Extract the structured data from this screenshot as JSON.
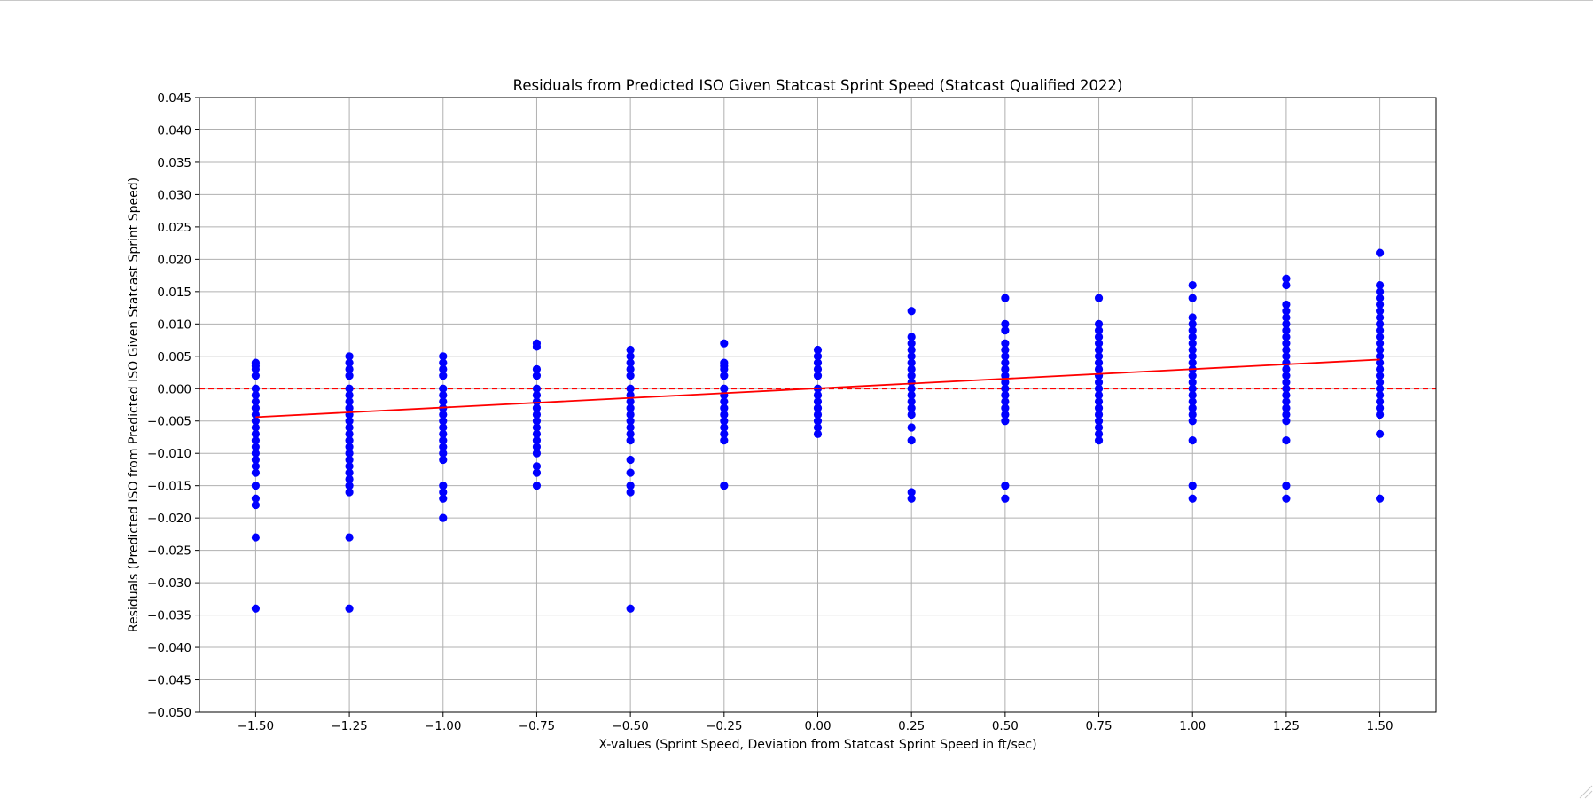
{
  "chart_data": {
    "type": "scatter",
    "title": "Residuals from Predicted ISO Given Statcast Sprint Speed (Statcast Qualified 2022)",
    "xlabel": "X-values (Sprint Speed, Deviation from Statcast Sprint Speed in ft/sec)",
    "ylabel": "Residuals (Predicted ISO from Predicted ISO Given Statcast Sprint Speed)",
    "xlim": [
      -1.65,
      1.65
    ],
    "ylim": [
      -0.05,
      0.045
    ],
    "xticks": [
      -1.5,
      -1.25,
      -1.0,
      -0.75,
      -0.5,
      -0.25,
      0.0,
      0.25,
      0.5,
      0.75,
      1.0,
      1.25,
      1.5
    ],
    "xtick_labels": [
      "−1.50",
      "−1.25",
      "−1.00",
      "−0.75",
      "−0.50",
      "−0.25",
      "0.00",
      "0.25",
      "0.50",
      "0.75",
      "1.00",
      "1.25",
      "1.50"
    ],
    "yticks": [
      0.045,
      0.04,
      0.035,
      0.03,
      0.025,
      0.02,
      0.015,
      0.01,
      0.005,
      0.0,
      -0.005,
      -0.01,
      -0.015,
      -0.02,
      -0.025,
      -0.03,
      -0.035,
      -0.04,
      -0.045,
      -0.05
    ],
    "ytick_labels": [
      "0.045",
      "0.040",
      "0.035",
      "0.030",
      "0.025",
      "0.020",
      "0.015",
      "0.010",
      "0.005",
      "0.000",
      "−0.005",
      "−0.010",
      "−0.015",
      "−0.020",
      "−0.025",
      "−0.030",
      "−0.035",
      "−0.040",
      "−0.045",
      "−0.050"
    ],
    "grid": true,
    "point_color": "#0000ff",
    "trend_color": "#ff0000",
    "zero_line": {
      "y": 0.0,
      "style": "dashed",
      "color": "#ff0000"
    },
    "trend_line": {
      "x": [
        -1.5,
        1.5
      ],
      "y": [
        -0.0044,
        0.0045
      ]
    },
    "series": [
      {
        "x": -1.5,
        "y": [
          0.004,
          0.0035,
          0.003,
          0.002,
          0.0,
          -0.001,
          -0.002,
          -0.003,
          -0.004,
          -0.005,
          -0.006,
          -0.007,
          -0.008,
          -0.009,
          -0.01,
          -0.011,
          -0.012,
          -0.013,
          -0.015,
          -0.017,
          -0.018,
          -0.023,
          -0.034
        ]
      },
      {
        "x": -1.25,
        "y": [
          0.005,
          0.004,
          0.003,
          0.002,
          0.0,
          -0.001,
          -0.002,
          -0.003,
          -0.004,
          -0.005,
          -0.006,
          -0.007,
          -0.008,
          -0.009,
          -0.01,
          -0.011,
          -0.012,
          -0.013,
          -0.014,
          -0.015,
          -0.016,
          -0.023,
          -0.034
        ]
      },
      {
        "x": -1.0,
        "y": [
          0.005,
          0.004,
          0.003,
          0.002,
          0.0,
          -0.001,
          -0.002,
          -0.003,
          -0.004,
          -0.005,
          -0.006,
          -0.007,
          -0.008,
          -0.009,
          -0.01,
          -0.011,
          -0.015,
          -0.016,
          -0.017,
          -0.02
        ]
      },
      {
        "x": -0.75,
        "y": [
          0.007,
          0.0065,
          0.003,
          0.002,
          0.0,
          -0.001,
          -0.002,
          -0.003,
          -0.004,
          -0.005,
          -0.006,
          -0.007,
          -0.008,
          -0.009,
          -0.01,
          -0.012,
          -0.013,
          -0.015
        ]
      },
      {
        "x": -0.5,
        "y": [
          0.006,
          0.005,
          0.004,
          0.003,
          0.002,
          0.0,
          -0.001,
          -0.002,
          -0.003,
          -0.004,
          -0.005,
          -0.006,
          -0.007,
          -0.008,
          -0.011,
          -0.013,
          -0.015,
          -0.016,
          -0.034
        ]
      },
      {
        "x": -0.25,
        "y": [
          0.007,
          0.004,
          0.0035,
          0.003,
          0.002,
          0.0,
          -0.001,
          -0.002,
          -0.003,
          -0.004,
          -0.005,
          -0.006,
          -0.007,
          -0.008,
          -0.015
        ]
      },
      {
        "x": 0.0,
        "y": [
          0.006,
          0.005,
          0.004,
          0.003,
          0.002,
          0.0,
          -0.001,
          -0.002,
          -0.003,
          -0.004,
          -0.005,
          -0.006,
          -0.007
        ]
      },
      {
        "x": 0.25,
        "y": [
          0.012,
          0.008,
          0.007,
          0.006,
          0.005,
          0.004,
          0.003,
          0.002,
          0.001,
          0.0,
          -0.001,
          -0.002,
          -0.003,
          -0.004,
          -0.006,
          -0.008,
          -0.016,
          -0.017
        ]
      },
      {
        "x": 0.5,
        "y": [
          0.014,
          0.01,
          0.009,
          0.007,
          0.006,
          0.005,
          0.004,
          0.003,
          0.002,
          0.001,
          0.0,
          -0.001,
          -0.002,
          -0.003,
          -0.004,
          -0.005,
          -0.015,
          -0.017
        ]
      },
      {
        "x": 0.75,
        "y": [
          0.014,
          0.01,
          0.009,
          0.008,
          0.007,
          0.006,
          0.005,
          0.004,
          0.003,
          0.002,
          0.001,
          0.0,
          -0.001,
          -0.002,
          -0.003,
          -0.004,
          -0.005,
          -0.006,
          -0.007,
          -0.008
        ]
      },
      {
        "x": 1.0,
        "y": [
          0.016,
          0.014,
          0.011,
          0.01,
          0.009,
          0.008,
          0.007,
          0.006,
          0.005,
          0.004,
          0.003,
          0.002,
          0.001,
          0.0,
          -0.001,
          -0.002,
          -0.003,
          -0.004,
          -0.005,
          -0.008,
          -0.015,
          -0.017
        ]
      },
      {
        "x": 1.25,
        "y": [
          0.017,
          0.016,
          0.013,
          0.012,
          0.011,
          0.01,
          0.009,
          0.008,
          0.007,
          0.006,
          0.005,
          0.004,
          0.003,
          0.002,
          0.001,
          0.0,
          -0.001,
          -0.002,
          -0.003,
          -0.004,
          -0.005,
          -0.008,
          -0.015,
          -0.017
        ]
      },
      {
        "x": 1.5,
        "y": [
          0.021,
          0.016,
          0.015,
          0.014,
          0.013,
          0.012,
          0.011,
          0.01,
          0.009,
          0.008,
          0.007,
          0.006,
          0.005,
          0.004,
          0.003,
          0.002,
          0.001,
          0.0,
          -0.001,
          -0.002,
          -0.003,
          -0.004,
          -0.007,
          -0.017
        ]
      }
    ]
  }
}
